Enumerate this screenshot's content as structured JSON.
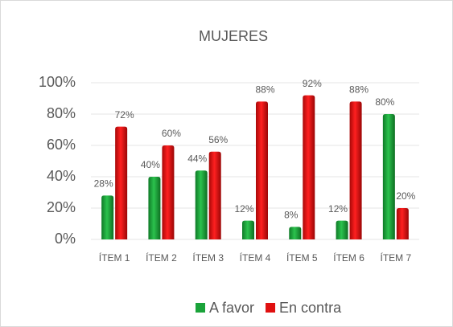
{
  "chart_data": {
    "type": "bar",
    "title": "MUJERES",
    "categories": [
      "ÍTEM 1",
      "ÍTEM 2",
      "ÍTEM 3",
      "ÍTEM 4",
      "ÍTEM 5",
      "ÍTEM 6",
      "ÍTEM 7"
    ],
    "series": [
      {
        "name": "A favor",
        "color": "#1aa33a",
        "values": [
          28,
          40,
          44,
          12,
          8,
          12,
          80
        ],
        "value_labels": [
          "28%",
          "40%",
          "44%",
          "12%",
          "8%",
          "12%",
          "80%"
        ]
      },
      {
        "name": "En contra",
        "color": "#e01010",
        "values": [
          72,
          60,
          56,
          88,
          92,
          88,
          20
        ],
        "value_labels": [
          "72%",
          "60%",
          "56%",
          "88%",
          "92%",
          "88%",
          "20%"
        ]
      }
    ],
    "ylim": [
      0,
      100
    ],
    "yticks": [
      {
        "value": 0,
        "label": "0%"
      },
      {
        "value": 20,
        "label": "20%"
      },
      {
        "value": 40,
        "label": "40%"
      },
      {
        "value": 60,
        "label": "60%"
      },
      {
        "value": 80,
        "label": "80%"
      },
      {
        "value": 100,
        "label": "100%"
      }
    ],
    "grid": true,
    "legend": "bottom"
  }
}
